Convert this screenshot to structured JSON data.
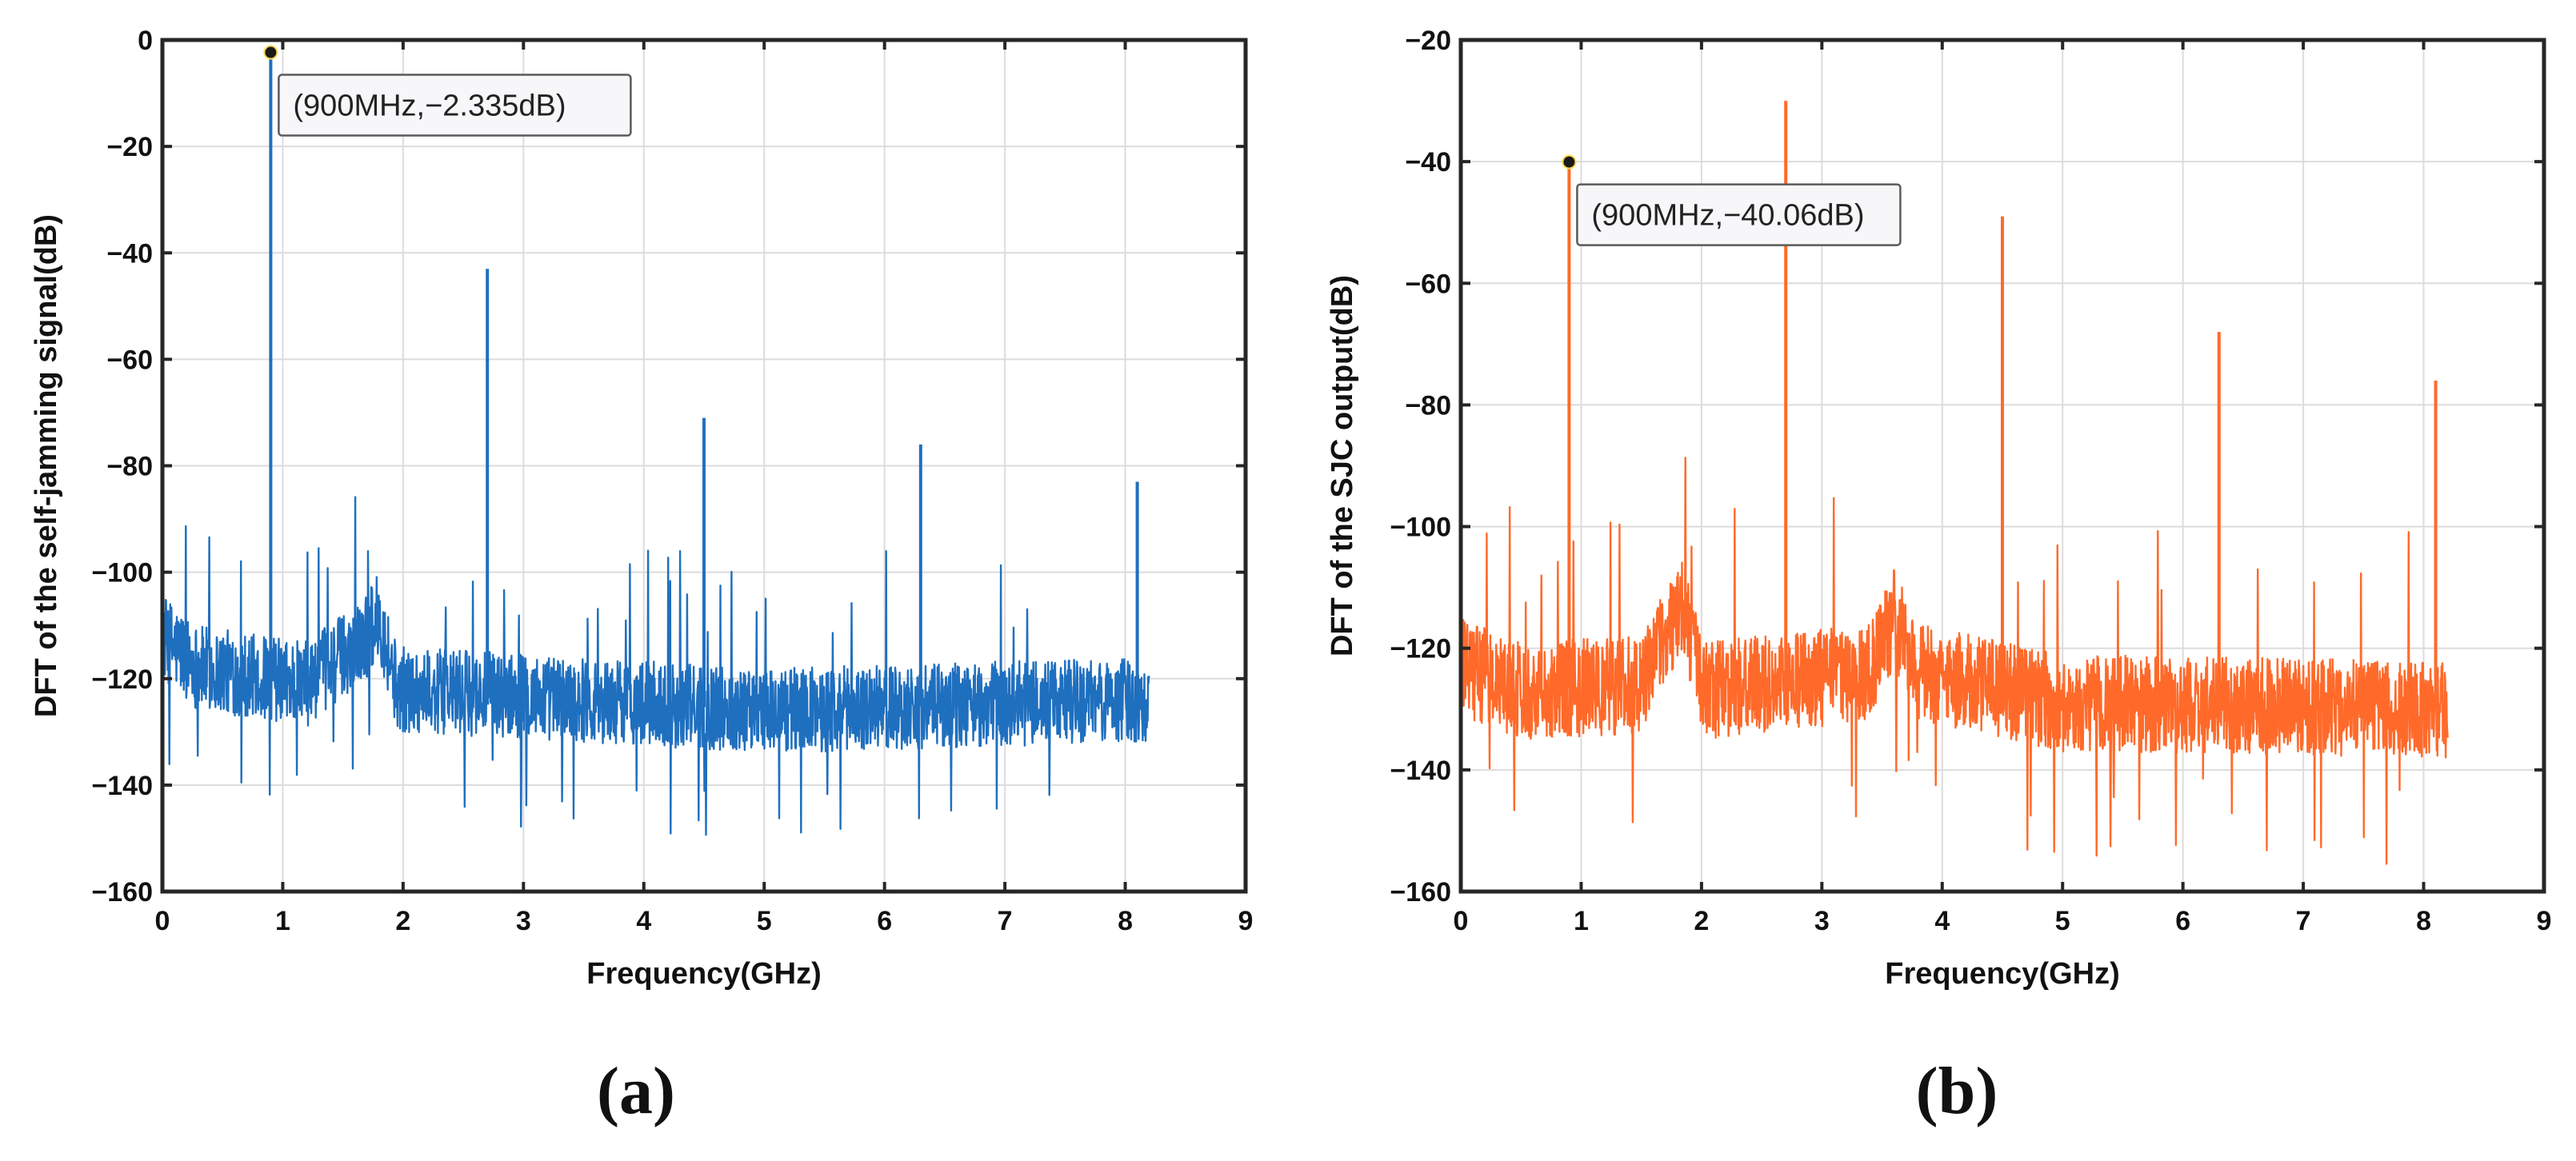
{
  "chart_data": [
    {
      "type": "line",
      "panel_label": "(a)",
      "xlabel": "Frequency(GHz)",
      "ylabel": "DFT of the self-jamming signal(dB)",
      "xlim": [
        0,
        9
      ],
      "ylim": [
        -160,
        0
      ],
      "xticks": [
        "0",
        "1",
        "2",
        "3",
        "4",
        "5",
        "6",
        "7",
        "8",
        "9"
      ],
      "yticks": [
        "0",
        "−20",
        "−40",
        "−60",
        "−80",
        "−100",
        "−120",
        "−140",
        "−160"
      ],
      "grid": true,
      "color": "#1f6fbf",
      "x_range": [
        0,
        8.2
      ],
      "noise_floor": -122,
      "noise_floor_profile": [
        [
          0,
          -112
        ],
        [
          0.3,
          -118
        ],
        [
          1.2,
          -121
        ],
        [
          1.7,
          -112
        ],
        [
          1.8,
          -108
        ],
        [
          1.95,
          -122
        ],
        [
          3.5,
          -124
        ],
        [
          5,
          -126
        ],
        [
          8.2,
          -124
        ]
      ],
      "peaks": [
        {
          "x": 0.9,
          "y": -2.335
        },
        {
          "x": 2.7,
          "y": -43
        },
        {
          "x": 4.5,
          "y": -71
        },
        {
          "x": 6.3,
          "y": -76
        },
        {
          "x": 8.1,
          "y": -83
        }
      ],
      "datatip": {
        "x": 0.9,
        "y": -2.335,
        "text": "(900MHz,−2.335dB)"
      }
    },
    {
      "type": "line",
      "panel_label": "(b)",
      "xlabel": "Frequency(GHz)",
      "ylabel": "DFT of the SJC output(dB)",
      "xlim": [
        0,
        9
      ],
      "ylim": [
        -160,
        -20
      ],
      "xticks": [
        "0",
        "1",
        "2",
        "3",
        "4",
        "5",
        "6",
        "7",
        "8",
        "9"
      ],
      "yticks": [
        "−20",
        "−40",
        "−60",
        "−80",
        "−100",
        "−120",
        "−140",
        "−160"
      ],
      "grid": true,
      "color": "#ff6a2a",
      "x_range": [
        0,
        8.2
      ],
      "noise_floor": -127,
      "noise_floor_profile": [
        [
          0,
          -123
        ],
        [
          0.5,
          -127
        ],
        [
          1.5,
          -126
        ],
        [
          1.85,
          -112
        ],
        [
          2.0,
          -127
        ],
        [
          3.4,
          -124
        ],
        [
          3.6,
          -115
        ],
        [
          3.8,
          -124
        ],
        [
          5,
          -129
        ],
        [
          8.2,
          -130
        ]
      ],
      "peaks": [
        {
          "x": 0.9,
          "y": -40.06
        },
        {
          "x": 2.7,
          "y": -30
        },
        {
          "x": 4.5,
          "y": -49
        },
        {
          "x": 6.3,
          "y": -68
        },
        {
          "x": 8.1,
          "y": -76
        }
      ],
      "datatip": {
        "x": 0.9,
        "y": -40.06,
        "text": "(900MHz,−40.06dB)"
      }
    }
  ]
}
